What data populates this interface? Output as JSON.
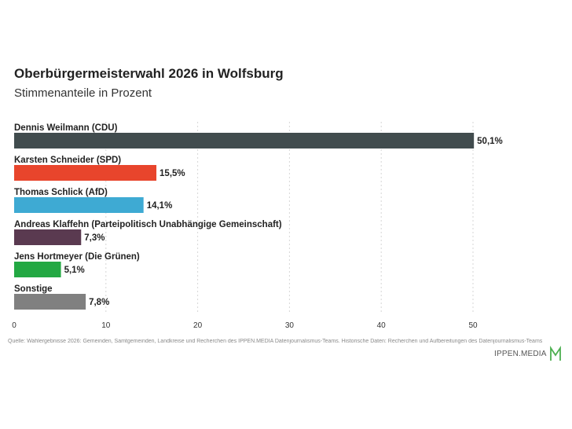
{
  "title": "Oberbürgermeisterwahl 2026 in Wolfsburg",
  "subtitle": "Stimmenanteile in Prozent",
  "source": "Quelle: Wahlergebnisse 2026: Gemeinden, Samtgemeinden, Landkreise und Recherchen des IPPEN.MEDIA Datenjournalismus-Teams. Historische Daten: Recherchen und Aufbereitungen des Datenjournalismus-Teams",
  "logo": {
    "text": "IPPEN.MEDIA",
    "mark_icon": "ippen-media-m-logo-icon",
    "mark_color": "#4caf50"
  },
  "chart_data": {
    "type": "bar",
    "orientation": "horizontal",
    "categories": [
      "Dennis Weilmann (CDU)",
      "Karsten Schneider (SPD)",
      "Thomas Schlick (AfD)",
      "Andreas Klaffehn (Parteipolitisch Unabhängige Gemeinschaft)",
      "Jens Hortmeyer (Die Grünen)",
      "Sonstige"
    ],
    "values": [
      50.1,
      15.5,
      14.1,
      7.3,
      5.1,
      7.8
    ],
    "value_labels": [
      "50,1%",
      "15,5%",
      "14,1%",
      "7,3%",
      "5,1%",
      "7,8%"
    ],
    "colors": [
      "#414c4e",
      "#e8452c",
      "#3eaad3",
      "#5a3a50",
      "#23a843",
      "#808080"
    ],
    "x_ticks": [
      0,
      10,
      20,
      30,
      40,
      50
    ],
    "x_tick_labels": [
      "0",
      "10",
      "20",
      "30",
      "40",
      "50"
    ],
    "xlim": [
      0,
      60
    ],
    "grid": true
  }
}
